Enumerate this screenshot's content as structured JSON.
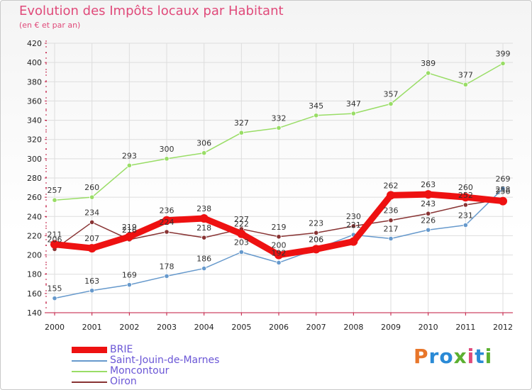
{
  "header": {
    "title": "Evolution des Impôts locaux par Habitant",
    "subtitle": "(en € et par an)"
  },
  "brand": {
    "letters": [
      "P",
      "r",
      "o",
      "x",
      "i",
      "t",
      "i"
    ]
  },
  "colors": {
    "axis": "#c0143c",
    "grid": "#dddddd",
    "brand_letters": [
      "#e8762a",
      "#2a8ad6",
      "#2a8ad6",
      "#5cb030",
      "#e04a7a",
      "#2a8ad6",
      "#5cb030"
    ]
  },
  "chart_data": {
    "type": "line",
    "title": "Evolution des Impôts locaux par Habitant",
    "subtitle": "(en € et par an)",
    "xlabel": "",
    "ylabel": "",
    "ylim": [
      140,
      420
    ],
    "yticks": [
      140,
      160,
      180,
      200,
      220,
      240,
      260,
      280,
      300,
      320,
      340,
      360,
      380,
      400,
      420
    ],
    "categories": [
      "2000",
      "2001",
      "2002",
      "2003",
      "2004",
      "2005",
      "2006",
      "2007",
      "2008",
      "2009",
      "2010",
      "2011",
      "2012"
    ],
    "series": [
      {
        "name": "BRIE",
        "color": "#ee1111",
        "values": [
          211,
          207,
          219,
          236,
          238,
          222,
          200,
          206,
          214,
          262,
          263,
          260,
          256
        ],
        "labels": [
          "211",
          "207",
          "219",
          "236",
          "238",
          "222",
          "200",
          "206",
          "",
          "262",
          "263",
          "260",
          "256"
        ]
      },
      {
        "name": "Saint-Jouin-de-Marnes",
        "color": "#6699cc",
        "values": [
          155,
          163,
          169,
          178,
          186,
          203,
          192,
          206,
          221,
          217,
          226,
          231,
          269
        ],
        "labels": [
          "155",
          "163",
          "169",
          "178",
          "186",
          "203",
          "192",
          "206",
          "221",
          "217",
          "226",
          "231",
          "269"
        ]
      },
      {
        "name": "Moncontour",
        "color": "#99dd66",
        "values": [
          257,
          260,
          293,
          300,
          306,
          327,
          332,
          345,
          347,
          357,
          389,
          377,
          399
        ],
        "labels": [
          "257",
          "260",
          "293",
          "300",
          "306",
          "327",
          "332",
          "345",
          "347",
          "357",
          "389",
          "377",
          "399"
        ]
      },
      {
        "name": "Oiron",
        "color": "#883333",
        "values": [
          206,
          234,
          216,
          224,
          218,
          227,
          219,
          223,
          230,
          236,
          243,
          252,
          258
        ],
        "labels": [
          "206",
          "234",
          "216",
          "224",
          "218",
          "227",
          "219",
          "223",
          "230",
          "236",
          "243",
          "252",
          "258"
        ]
      }
    ],
    "legend_position": "bottom-left",
    "grid": true
  }
}
